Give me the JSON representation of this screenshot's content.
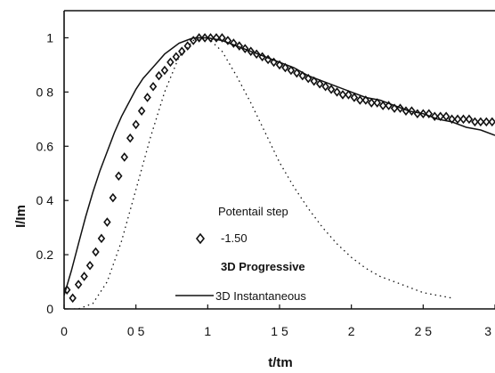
{
  "chart_data": {
    "type": "line",
    "title": "",
    "xlabel": "t/tm",
    "ylabel": "I/Im",
    "xlim": [
      0,
      3
    ],
    "ylim": [
      0,
      1.1
    ],
    "x_tick_labels": [
      "0",
      "0 5",
      "1",
      "1 5",
      "2",
      "2 5",
      "3"
    ],
    "x_tick_values": [
      0,
      0.5,
      1,
      1.5,
      2,
      2.5,
      3
    ],
    "y_tick_labels": [
      "0",
      "0.2",
      "0 4",
      "0.6",
      "0 8",
      "1"
    ],
    "y_tick_values": [
      0,
      0.2,
      0.4,
      0.6,
      0.8,
      1
    ],
    "grid": false,
    "legend": {
      "title": "Potentail step",
      "marker_label": "-1.50",
      "progressive_label": "3D Progressive",
      "instantaneous_label": "3D Instantaneous"
    },
    "series": [
      {
        "name": "-1.50",
        "style": "diamond-markers",
        "x": [
          0.02,
          0.06,
          0.1,
          0.14,
          0.18,
          0.22,
          0.26,
          0.3,
          0.34,
          0.38,
          0.42,
          0.46,
          0.5,
          0.54,
          0.58,
          0.62,
          0.66,
          0.7,
          0.74,
          0.78,
          0.82,
          0.86,
          0.9,
          0.94,
          0.98,
          1.02,
          1.06,
          1.1,
          1.14,
          1.18,
          1.22,
          1.26,
          1.3,
          1.34,
          1.38,
          1.42,
          1.46,
          1.5,
          1.54,
          1.58,
          1.62,
          1.66,
          1.7,
          1.74,
          1.78,
          1.82,
          1.86,
          1.9,
          1.94,
          1.98,
          2.02,
          2.06,
          2.1,
          2.14,
          2.18,
          2.22,
          2.26,
          2.3,
          2.34,
          2.38,
          2.42,
          2.46,
          2.5,
          2.54,
          2.58,
          2.62,
          2.66,
          2.7,
          2.74,
          2.78,
          2.82,
          2.86,
          2.9,
          2.94,
          2.98
        ],
        "y": [
          0.07,
          0.04,
          0.09,
          0.12,
          0.16,
          0.21,
          0.26,
          0.32,
          0.41,
          0.49,
          0.56,
          0.63,
          0.68,
          0.73,
          0.78,
          0.82,
          0.86,
          0.88,
          0.91,
          0.93,
          0.95,
          0.97,
          0.99,
          1.0,
          1.0,
          1.0,
          1.0,
          1.0,
          0.99,
          0.98,
          0.97,
          0.96,
          0.95,
          0.94,
          0.93,
          0.92,
          0.91,
          0.9,
          0.89,
          0.88,
          0.87,
          0.86,
          0.85,
          0.84,
          0.83,
          0.82,
          0.81,
          0.8,
          0.79,
          0.79,
          0.78,
          0.77,
          0.77,
          0.76,
          0.76,
          0.75,
          0.75,
          0.74,
          0.74,
          0.73,
          0.73,
          0.72,
          0.72,
          0.72,
          0.71,
          0.71,
          0.71,
          0.7,
          0.7,
          0.7,
          0.7,
          0.69,
          0.69,
          0.69,
          0.69
        ]
      },
      {
        "name": "3D Progressive",
        "style": "dotted",
        "x": [
          0.0,
          0.1,
          0.2,
          0.3,
          0.4,
          0.5,
          0.6,
          0.7,
          0.8,
          0.9,
          1.0,
          1.1,
          1.2,
          1.3,
          1.4,
          1.5,
          1.6,
          1.7,
          1.8,
          1.9,
          2.0,
          2.1,
          2.2,
          2.3,
          2.4,
          2.5,
          2.6,
          2.7
        ],
        "y": [
          0.0,
          0.0,
          0.02,
          0.1,
          0.25,
          0.44,
          0.63,
          0.8,
          0.93,
          0.99,
          1.0,
          0.95,
          0.86,
          0.76,
          0.65,
          0.54,
          0.45,
          0.37,
          0.3,
          0.24,
          0.19,
          0.15,
          0.12,
          0.1,
          0.08,
          0.06,
          0.05,
          0.04
        ]
      },
      {
        "name": "3D Instantaneous",
        "style": "solid",
        "x": [
          0.0,
          0.05,
          0.1,
          0.15,
          0.2,
          0.25,
          0.3,
          0.35,
          0.4,
          0.45,
          0.5,
          0.55,
          0.6,
          0.65,
          0.7,
          0.75,
          0.8,
          0.85,
          0.9,
          0.95,
          1.0,
          1.1,
          1.2,
          1.3,
          1.4,
          1.5,
          1.6,
          1.7,
          1.8,
          1.9,
          2.0,
          2.1,
          2.2,
          2.3,
          2.4,
          2.5,
          2.6,
          2.7,
          2.8,
          2.9,
          3.0
        ],
        "y": [
          0.05,
          0.14,
          0.24,
          0.34,
          0.43,
          0.51,
          0.58,
          0.65,
          0.71,
          0.76,
          0.81,
          0.85,
          0.88,
          0.91,
          0.94,
          0.96,
          0.98,
          0.99,
          1.0,
          1.0,
          1.0,
          0.99,
          0.97,
          0.95,
          0.93,
          0.91,
          0.89,
          0.86,
          0.84,
          0.82,
          0.8,
          0.78,
          0.77,
          0.75,
          0.73,
          0.72,
          0.7,
          0.69,
          0.67,
          0.66,
          0.64
        ]
      }
    ]
  }
}
